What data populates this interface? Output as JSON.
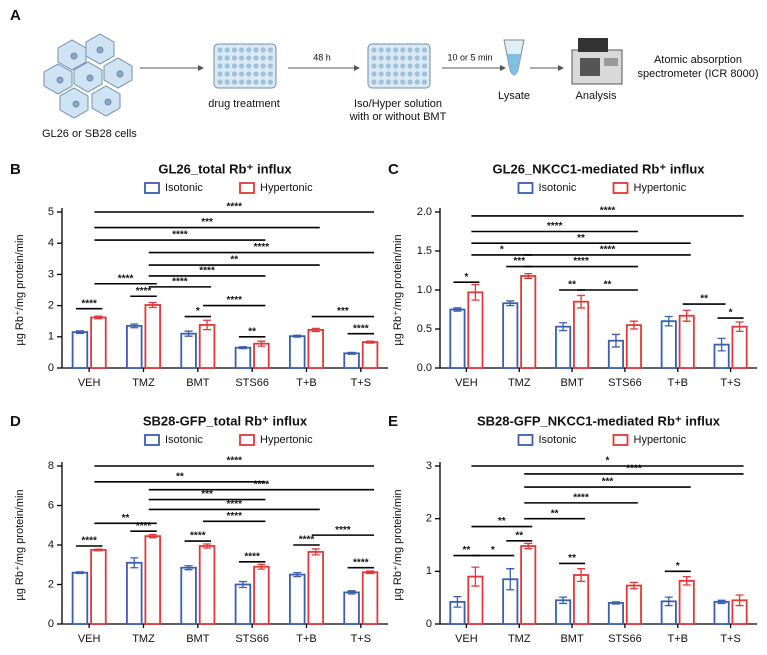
{
  "panel_a": {
    "letter": "A",
    "cells_label": "GL26 or SB28 cells",
    "treatment_label": "drug treatment",
    "time_1": "48 h",
    "solution_line1": "Iso/Hyper solution",
    "solution_line2": "with or without BMT",
    "time_2": "10 or 5 min",
    "lysate_label": "Lysate",
    "analysis_label": "Analysis",
    "instrument_line1": "Atomic absorption",
    "instrument_line2": "spectrometer (ICR 8000)"
  },
  "chart_data": [
    {
      "type": "bar",
      "panel": "B",
      "title": "GL26_total Rb⁺ influx",
      "y_label": "µg Rb⁺/mg protein/min",
      "categories": [
        "VEH",
        "TMZ",
        "BMT",
        "STS66",
        "T+B",
        "T+S"
      ],
      "series": [
        {
          "name": "Isotonic",
          "color": "#3a5fad",
          "values": [
            1.15,
            1.35,
            1.1,
            0.65,
            1.02,
            0.47
          ],
          "errors": [
            0.04,
            0.06,
            0.08,
            0.03,
            0.03,
            0.03
          ]
        },
        {
          "name": "Hypertonic",
          "color": "#e0393b",
          "values": [
            1.62,
            2.02,
            1.38,
            0.78,
            1.22,
            0.83
          ],
          "errors": [
            0.04,
            0.08,
            0.15,
            0.08,
            0.05,
            0.03
          ]
        }
      ],
      "ylim": [
        0,
        5
      ],
      "yticks": [
        0,
        1,
        2,
        3,
        4,
        5
      ],
      "brackets": [
        {
          "label": "****",
          "from": [
            0,
            0
          ],
          "to": [
            0,
            1
          ],
          "y": 1.9
        },
        {
          "label": "****",
          "from": [
            1,
            0
          ],
          "to": [
            1,
            1
          ],
          "y": 2.3
        },
        {
          "label": "****",
          "from": [
            0,
            1
          ],
          "to": [
            1,
            1
          ],
          "y": 2.7
        },
        {
          "label": "*",
          "from": [
            2,
            0
          ],
          "to": [
            2,
            1
          ],
          "y": 1.65
        },
        {
          "label": "**",
          "from": [
            3,
            0
          ],
          "to": [
            3,
            1
          ],
          "y": 1.0
        },
        {
          "label": "****",
          "from": [
            5,
            0
          ],
          "to": [
            5,
            1
          ],
          "y": 1.1
        },
        {
          "label": "***",
          "from": [
            4,
            1
          ],
          "to": [
            5,
            1
          ],
          "y": 1.65
        },
        {
          "label": "****",
          "from": [
            2,
            1
          ],
          "to": [
            3,
            1
          ],
          "y": 2.0
        },
        {
          "label": "****",
          "from": [
            1,
            1
          ],
          "to": [
            2,
            1
          ],
          "y": 2.6
        },
        {
          "label": "****",
          "from": [
            1,
            1
          ],
          "to": [
            3,
            1
          ],
          "y": 2.95
        },
        {
          "label": "**",
          "from": [
            1,
            1
          ],
          "to": [
            4,
            1
          ],
          "y": 3.3
        },
        {
          "label": "****",
          "from": [
            1,
            1
          ],
          "to": [
            5,
            1
          ],
          "y": 3.7
        },
        {
          "label": "****",
          "from": [
            0,
            1
          ],
          "to": [
            3,
            1
          ],
          "y": 4.1
        },
        {
          "label": "***",
          "from": [
            0,
            1
          ],
          "to": [
            4,
            1
          ],
          "y": 4.5
        },
        {
          "label": "****",
          "from": [
            0,
            1
          ],
          "to": [
            5,
            1
          ],
          "y": 5.0
        }
      ]
    },
    {
      "type": "bar",
      "panel": "C",
      "title": "GL26_NKCC1-mediated Rb⁺ influx",
      "y_label": "µg Rb⁺/mg protein/min",
      "categories": [
        "VEH",
        "TMZ",
        "BMT",
        "STS66",
        "T+B",
        "T+S"
      ],
      "series": [
        {
          "name": "Isotonic",
          "color": "#3a5fad",
          "values": [
            0.75,
            0.83,
            0.53,
            0.35,
            0.6,
            0.3
          ],
          "errors": [
            0.02,
            0.03,
            0.05,
            0.08,
            0.06,
            0.08
          ]
        },
        {
          "name": "Hypertonic",
          "color": "#e0393b",
          "values": [
            0.97,
            1.18,
            0.85,
            0.55,
            0.67,
            0.53
          ],
          "errors": [
            0.1,
            0.03,
            0.08,
            0.05,
            0.07,
            0.06
          ]
        }
      ],
      "ylim": [
        0,
        2
      ],
      "yticks": [
        {
          "value": 0,
          "label": "0.0"
        },
        0.5,
        {
          "value": 1,
          "label": "1.0"
        },
        1.5,
        {
          "value": 2,
          "label": "2.0"
        }
      ],
      "brackets": [
        {
          "label": "*",
          "from": [
            0,
            0
          ],
          "to": [
            0,
            1
          ],
          "y": 1.1
        },
        {
          "label": "***",
          "from": [
            1,
            0
          ],
          "to": [
            1,
            1
          ],
          "y": 1.3
        },
        {
          "label": "**",
          "from": [
            2,
            0
          ],
          "to": [
            2,
            1
          ],
          "y": 1.0
        },
        {
          "label": "**",
          "from": [
            2,
            1
          ],
          "to": [
            3,
            1
          ],
          "y": 1.0
        },
        {
          "label": "**",
          "from": [
            4,
            1
          ],
          "to": [
            5,
            0
          ],
          "y": 0.82
        },
        {
          "label": "*",
          "from": [
            5,
            0
          ],
          "to": [
            5,
            1
          ],
          "y": 0.64
        },
        {
          "label": "*",
          "from": [
            0,
            1
          ],
          "to": [
            1,
            1
          ],
          "y": 1.45
        },
        {
          "label": "****",
          "from": [
            1,
            1
          ],
          "to": [
            3,
            1
          ],
          "y": 1.3
        },
        {
          "label": "****",
          "from": [
            1,
            1
          ],
          "to": [
            4,
            1
          ],
          "y": 1.45
        },
        {
          "label": "**",
          "from": [
            0,
            1
          ],
          "to": [
            4,
            1
          ],
          "y": 1.6
        },
        {
          "label": "****",
          "from": [
            0,
            1
          ],
          "to": [
            3,
            1
          ],
          "y": 1.75
        },
        {
          "label": "****",
          "from": [
            0,
            1
          ],
          "to": [
            5,
            1
          ],
          "y": 1.95
        }
      ]
    },
    {
      "type": "bar",
      "panel": "D",
      "title": "SB28-GFP_total Rb⁺ influx",
      "y_label": "µg Rb⁺/mg protein/min",
      "categories": [
        "VEH",
        "TMZ",
        "BMT",
        "STS66",
        "T+B",
        "T+S"
      ],
      "series": [
        {
          "name": "Isotonic",
          "color": "#3a5fad",
          "values": [
            2.6,
            3.1,
            2.85,
            2.0,
            2.5,
            1.6
          ],
          "errors": [
            0.04,
            0.25,
            0.1,
            0.15,
            0.1,
            0.08
          ]
        },
        {
          "name": "Hypertonic",
          "color": "#e0393b",
          "values": [
            3.75,
            4.45,
            3.95,
            2.9,
            3.65,
            2.62
          ],
          "errors": [
            0.04,
            0.08,
            0.1,
            0.12,
            0.15,
            0.06
          ]
        }
      ],
      "ylim": [
        0,
        8
      ],
      "yticks": [
        0,
        2,
        4,
        6,
        8
      ],
      "brackets": [
        {
          "label": "****",
          "from": [
            0,
            0
          ],
          "to": [
            0,
            1
          ],
          "y": 3.95
        },
        {
          "label": "****",
          "from": [
            1,
            0
          ],
          "to": [
            1,
            1
          ],
          "y": 4.7
        },
        {
          "label": "**",
          "from": [
            0,
            1
          ],
          "to": [
            1,
            1
          ],
          "y": 5.1
        },
        {
          "label": "****",
          "from": [
            2,
            0
          ],
          "to": [
            2,
            1
          ],
          "y": 4.2
        },
        {
          "label": "****",
          "from": [
            3,
            0
          ],
          "to": [
            3,
            1
          ],
          "y": 3.15
        },
        {
          "label": "****",
          "from": [
            4,
            0
          ],
          "to": [
            4,
            1
          ],
          "y": 4.0
        },
        {
          "label": "****",
          "from": [
            5,
            0
          ],
          "to": [
            5,
            1
          ],
          "y": 2.85
        },
        {
          "label": "****",
          "from": [
            4,
            1
          ],
          "to": [
            5,
            1
          ],
          "y": 4.5
        },
        {
          "label": "****",
          "from": [
            2,
            1
          ],
          "to": [
            3,
            1
          ],
          "y": 5.2
        },
        {
          "label": "****",
          "from": [
            1,
            1
          ],
          "to": [
            4,
            1
          ],
          "y": 5.8
        },
        {
          "label": "***",
          "from": [
            1,
            1
          ],
          "to": [
            3,
            1
          ],
          "y": 6.3
        },
        {
          "label": "****",
          "from": [
            1,
            1
          ],
          "to": [
            5,
            1
          ],
          "y": 6.8
        },
        {
          "label": "**",
          "from": [
            0,
            1
          ],
          "to": [
            3,
            1
          ],
          "y": 7.2
        },
        {
          "label": "****",
          "from": [
            0,
            1
          ],
          "to": [
            5,
            1
          ],
          "y": 8.0
        }
      ]
    },
    {
      "type": "bar",
      "panel": "E",
      "title": "SB28-GFP_NKCC1-mediated Rb⁺ influx",
      "y_label": "µg Rb⁺/mg protein/min",
      "categories": [
        "VEH",
        "TMZ",
        "BMT",
        "STS66",
        "T+B",
        "T+S"
      ],
      "series": [
        {
          "name": "Isotonic",
          "color": "#3a5fad",
          "values": [
            0.42,
            0.85,
            0.45,
            0.4,
            0.43,
            0.42
          ],
          "errors": [
            0.1,
            0.2,
            0.06,
            0.02,
            0.08,
            0.03
          ]
        },
        {
          "name": "Hypertonic",
          "color": "#e0393b",
          "values": [
            0.9,
            1.48,
            0.93,
            0.73,
            0.82,
            0.45
          ],
          "errors": [
            0.18,
            0.05,
            0.12,
            0.06,
            0.08,
            0.1
          ]
        }
      ],
      "ylim": [
        0,
        3
      ],
      "yticks": [
        0,
        1,
        2,
        3
      ],
      "brackets": [
        {
          "label": "**",
          "from": [
            0,
            0
          ],
          "to": [
            0,
            1
          ],
          "y": 1.3
        },
        {
          "label": "*",
          "from": [
            0,
            1
          ],
          "to": [
            1,
            0
          ],
          "y": 1.3
        },
        {
          "label": "**",
          "from": [
            1,
            0
          ],
          "to": [
            1,
            1
          ],
          "y": 1.58
        },
        {
          "label": "**",
          "from": [
            0,
            1
          ],
          "to": [
            1,
            1
          ],
          "y": 1.85
        },
        {
          "label": "**",
          "from": [
            2,
            0
          ],
          "to": [
            2,
            1
          ],
          "y": 1.15
        },
        {
          "label": "*",
          "from": [
            4,
            0
          ],
          "to": [
            4,
            1
          ],
          "y": 1.0
        },
        {
          "label": "**",
          "from": [
            1,
            1
          ],
          "to": [
            2,
            1
          ],
          "y": 2.0
        },
        {
          "label": "****",
          "from": [
            1,
            1
          ],
          "to": [
            3,
            1
          ],
          "y": 2.3
        },
        {
          "label": "***",
          "from": [
            1,
            1
          ],
          "to": [
            4,
            1
          ],
          "y": 2.6
        },
        {
          "label": "****",
          "from": [
            1,
            1
          ],
          "to": [
            5,
            1
          ],
          "y": 2.85
        },
        {
          "label": "*",
          "from": [
            0,
            1
          ],
          "to": [
            5,
            1
          ],
          "y": 3.0
        }
      ]
    }
  ]
}
